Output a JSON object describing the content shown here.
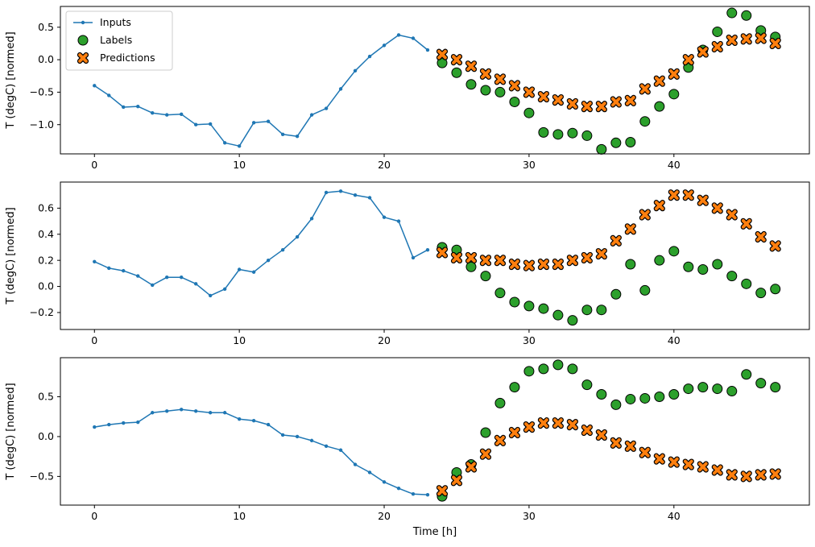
{
  "figure": {
    "background": "#ffffff",
    "xlabel": "Time [h]",
    "ylabel": "T (degC) [normed]"
  },
  "legend": {
    "position": "upper left",
    "entries": [
      {
        "label": "Inputs",
        "marker": "line-dot",
        "color": "#1f77b4"
      },
      {
        "label": "Labels",
        "marker": "circle",
        "color": "#2ca02c"
      },
      {
        "label": "Predictions",
        "marker": "X",
        "color": "#ff7f0e"
      }
    ]
  },
  "chart_data": [
    {
      "type": "line",
      "title": "",
      "xlabel": "",
      "ylabel": "T (degC) [normed]",
      "xlim": [
        -2.35,
        49.35
      ],
      "ylim": [
        -1.45,
        0.82
      ],
      "xticks": [
        0,
        10,
        20,
        30,
        40
      ],
      "yticks": [
        -1.0,
        -0.5,
        0.0,
        0.5
      ],
      "legend": {
        "show": true,
        "position": "upper left"
      },
      "series": [
        {
          "name": "Inputs",
          "type": "line",
          "marker": "dot",
          "color": "#1f77b4",
          "x": [
            0,
            1,
            2,
            3,
            4,
            5,
            6,
            7,
            8,
            9,
            10,
            11,
            12,
            13,
            14,
            15,
            16,
            17,
            18,
            19,
            20,
            21,
            22,
            23
          ],
          "y": [
            -0.4,
            -0.55,
            -0.73,
            -0.72,
            -0.82,
            -0.85,
            -0.84,
            -1.0,
            -0.99,
            -1.28,
            -1.33,
            -0.97,
            -0.95,
            -1.15,
            -1.18,
            -0.85,
            -0.75,
            -0.45,
            -0.17,
            0.05,
            0.22,
            0.38,
            0.33,
            0.15
          ]
        },
        {
          "name": "Labels",
          "type": "scatter",
          "marker": "circle",
          "color": "#2ca02c",
          "edgecolor": "#000000",
          "x": [
            24,
            25,
            26,
            27,
            28,
            29,
            30,
            31,
            32,
            33,
            34,
            35,
            36,
            37,
            38,
            39,
            40,
            41,
            42,
            43,
            44,
            45,
            46,
            47
          ],
          "y": [
            -0.05,
            -0.2,
            -0.38,
            -0.47,
            -0.5,
            -0.65,
            -0.82,
            -1.12,
            -1.15,
            -1.13,
            -1.17,
            -1.38,
            -1.28,
            -1.27,
            -0.95,
            -0.72,
            -0.53,
            -0.12,
            0.15,
            0.43,
            0.72,
            0.68,
            0.45,
            0.35
          ]
        },
        {
          "name": "Predictions",
          "type": "scatter",
          "marker": "X",
          "color": "#ff7f0e",
          "edgecolor": "#000000",
          "x": [
            24,
            25,
            26,
            27,
            28,
            29,
            30,
            31,
            32,
            33,
            34,
            35,
            36,
            37,
            38,
            39,
            40,
            41,
            42,
            43,
            44,
            45,
            46,
            47
          ],
          "y": [
            0.08,
            0.0,
            -0.1,
            -0.22,
            -0.3,
            -0.4,
            -0.5,
            -0.57,
            -0.62,
            -0.68,
            -0.72,
            -0.72,
            -0.65,
            -0.63,
            -0.45,
            -0.33,
            -0.22,
            0.0,
            0.12,
            0.2,
            0.3,
            0.32,
            0.33,
            0.25
          ]
        }
      ]
    },
    {
      "type": "line",
      "title": "",
      "xlabel": "",
      "ylabel": "T (degC) [normed]",
      "xlim": [
        -2.35,
        49.35
      ],
      "ylim": [
        -0.33,
        0.8
      ],
      "xticks": [
        0,
        10,
        20,
        30,
        40
      ],
      "yticks": [
        -0.2,
        0.0,
        0.2,
        0.4,
        0.6
      ],
      "legend": {
        "show": false
      },
      "series": [
        {
          "name": "Inputs",
          "type": "line",
          "marker": "dot",
          "color": "#1f77b4",
          "x": [
            0,
            1,
            2,
            3,
            4,
            5,
            6,
            7,
            8,
            9,
            10,
            11,
            12,
            13,
            14,
            15,
            16,
            17,
            18,
            19,
            20,
            21,
            22,
            23
          ],
          "y": [
            0.19,
            0.14,
            0.12,
            0.08,
            0.01,
            0.07,
            0.07,
            0.02,
            -0.07,
            -0.02,
            0.13,
            0.11,
            0.2,
            0.28,
            0.38,
            0.52,
            0.72,
            0.73,
            0.7,
            0.68,
            0.53,
            0.5,
            0.22,
            0.28
          ]
        },
        {
          "name": "Labels",
          "type": "scatter",
          "marker": "circle",
          "color": "#2ca02c",
          "edgecolor": "#000000",
          "x": [
            24,
            25,
            26,
            27,
            28,
            29,
            30,
            31,
            32,
            33,
            34,
            35,
            36,
            37,
            38,
            39,
            40,
            41,
            42,
            43,
            44,
            45,
            46,
            47
          ],
          "y": [
            0.3,
            0.28,
            0.15,
            0.08,
            -0.05,
            -0.12,
            -0.15,
            -0.17,
            -0.22,
            -0.26,
            -0.18,
            -0.18,
            -0.06,
            0.17,
            -0.03,
            0.2,
            0.27,
            0.15,
            0.13,
            0.17,
            0.08,
            0.02,
            -0.05,
            -0.02
          ]
        },
        {
          "name": "Predictions",
          "type": "scatter",
          "marker": "X",
          "color": "#ff7f0e",
          "edgecolor": "#000000",
          "x": [
            24,
            25,
            26,
            27,
            28,
            29,
            30,
            31,
            32,
            33,
            34,
            35,
            36,
            37,
            38,
            39,
            40,
            41,
            42,
            43,
            44,
            45,
            46,
            47
          ],
          "y": [
            0.26,
            0.22,
            0.22,
            0.2,
            0.2,
            0.17,
            0.16,
            0.17,
            0.17,
            0.2,
            0.22,
            0.25,
            0.35,
            0.44,
            0.55,
            0.62,
            0.7,
            0.7,
            0.66,
            0.6,
            0.55,
            0.48,
            0.38,
            0.31
          ]
        }
      ]
    },
    {
      "type": "line",
      "title": "",
      "xlabel": "Time [h]",
      "ylabel": "T (degC) [normed]",
      "xlim": [
        -2.35,
        49.35
      ],
      "ylim": [
        -0.86,
        0.99
      ],
      "xticks": [
        0,
        10,
        20,
        30,
        40
      ],
      "yticks": [
        -0.5,
        0.0,
        0.5
      ],
      "legend": {
        "show": false
      },
      "series": [
        {
          "name": "Inputs",
          "type": "line",
          "marker": "dot",
          "color": "#1f77b4",
          "x": [
            0,
            1,
            2,
            3,
            4,
            5,
            6,
            7,
            8,
            9,
            10,
            11,
            12,
            13,
            14,
            15,
            16,
            17,
            18,
            19,
            20,
            21,
            22,
            23
          ],
          "y": [
            0.12,
            0.15,
            0.17,
            0.18,
            0.3,
            0.32,
            0.34,
            0.32,
            0.3,
            0.3,
            0.22,
            0.2,
            0.15,
            0.02,
            0.0,
            -0.05,
            -0.12,
            -0.17,
            -0.35,
            -0.45,
            -0.57,
            -0.65,
            -0.72,
            -0.73
          ]
        },
        {
          "name": "Labels",
          "type": "scatter",
          "marker": "circle",
          "color": "#2ca02c",
          "edgecolor": "#000000",
          "x": [
            24,
            25,
            26,
            27,
            28,
            29,
            30,
            31,
            32,
            33,
            34,
            35,
            36,
            37,
            38,
            39,
            40,
            41,
            42,
            43,
            44,
            45,
            46,
            47
          ],
          "y": [
            -0.75,
            -0.45,
            -0.35,
            0.05,
            0.42,
            0.62,
            0.82,
            0.85,
            0.9,
            0.85,
            0.65,
            0.53,
            0.4,
            0.47,
            0.48,
            0.5,
            0.53,
            0.6,
            0.62,
            0.6,
            0.57,
            0.78,
            0.67,
            0.62
          ]
        },
        {
          "name": "Predictions",
          "type": "scatter",
          "marker": "X",
          "color": "#ff7f0e",
          "edgecolor": "#000000",
          "x": [
            24,
            25,
            26,
            27,
            28,
            29,
            30,
            31,
            32,
            33,
            34,
            35,
            36,
            37,
            38,
            39,
            40,
            41,
            42,
            43,
            44,
            45,
            46,
            47
          ],
          "y": [
            -0.68,
            -0.55,
            -0.38,
            -0.22,
            -0.05,
            0.05,
            0.12,
            0.17,
            0.17,
            0.15,
            0.08,
            0.02,
            -0.08,
            -0.12,
            -0.2,
            -0.28,
            -0.32,
            -0.35,
            -0.38,
            -0.42,
            -0.48,
            -0.5,
            -0.48,
            -0.47
          ]
        }
      ]
    }
  ]
}
